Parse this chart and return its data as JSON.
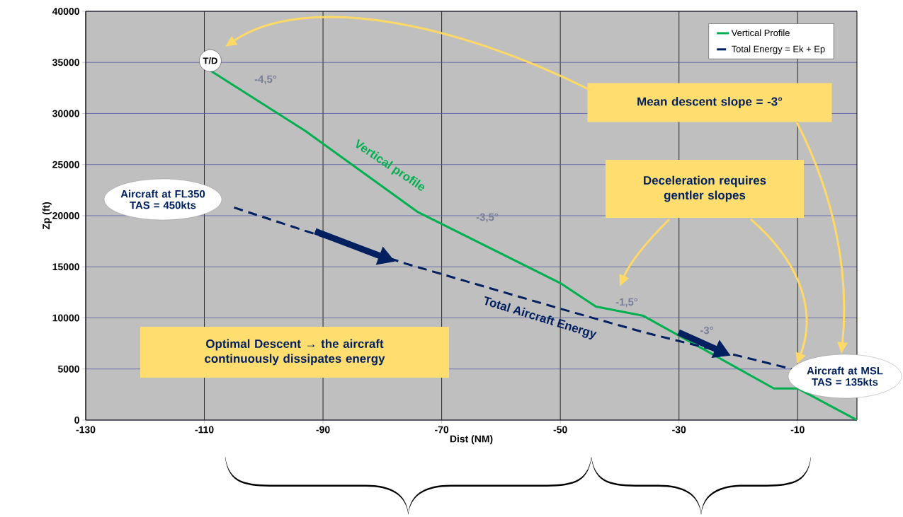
{
  "chart_data": {
    "type": "line",
    "xlabel": "Dist (NM)",
    "ylabel": "Zp (ft)",
    "xlim": [
      -130,
      0
    ],
    "xticks": [
      -130,
      -110,
      -90,
      -70,
      -50,
      -30,
      -10
    ],
    "ylim": [
      0,
      40000
    ],
    "yticks": [
      0,
      5000,
      10000,
      15000,
      20000,
      25000,
      30000,
      35000,
      40000
    ],
    "grid": true,
    "legend": "top right",
    "series": [
      {
        "name": "Vertical Profile",
        "color": "#00b050",
        "line_style": "solid",
        "x": [
          -109,
          -93,
          -74,
          -50,
          -44,
          -36,
          -14,
          -10,
          0
        ],
        "values": [
          34200,
          28300,
          20350,
          13400,
          11100,
          10200,
          3100,
          3100,
          0
        ]
      },
      {
        "name": "Total Energy = Ek + Ep",
        "color": "#002060",
        "line_style": "dashed",
        "x": [
          -105,
          -76,
          -50,
          -36,
          -11
        ],
        "values": [
          20800,
          15300,
          10900,
          8600,
          5000
        ]
      }
    ],
    "annotations": [
      {
        "text": "T/D",
        "x": -109,
        "y": 34200
      },
      "-4,5°",
      "Vertical profile",
      "-3,5°",
      "-1,5°",
      "-3°",
      "Total Aircraft Energy",
      "Aircraft at FL350 TAS = 450kts",
      "Aircraft at MSL TAS = 135kts",
      "Mean descent slope = -3°",
      "Deceleration requires gentler slopes",
      "Optimal Descent → the aircraft continuously dissipates energy"
    ]
  }
}
